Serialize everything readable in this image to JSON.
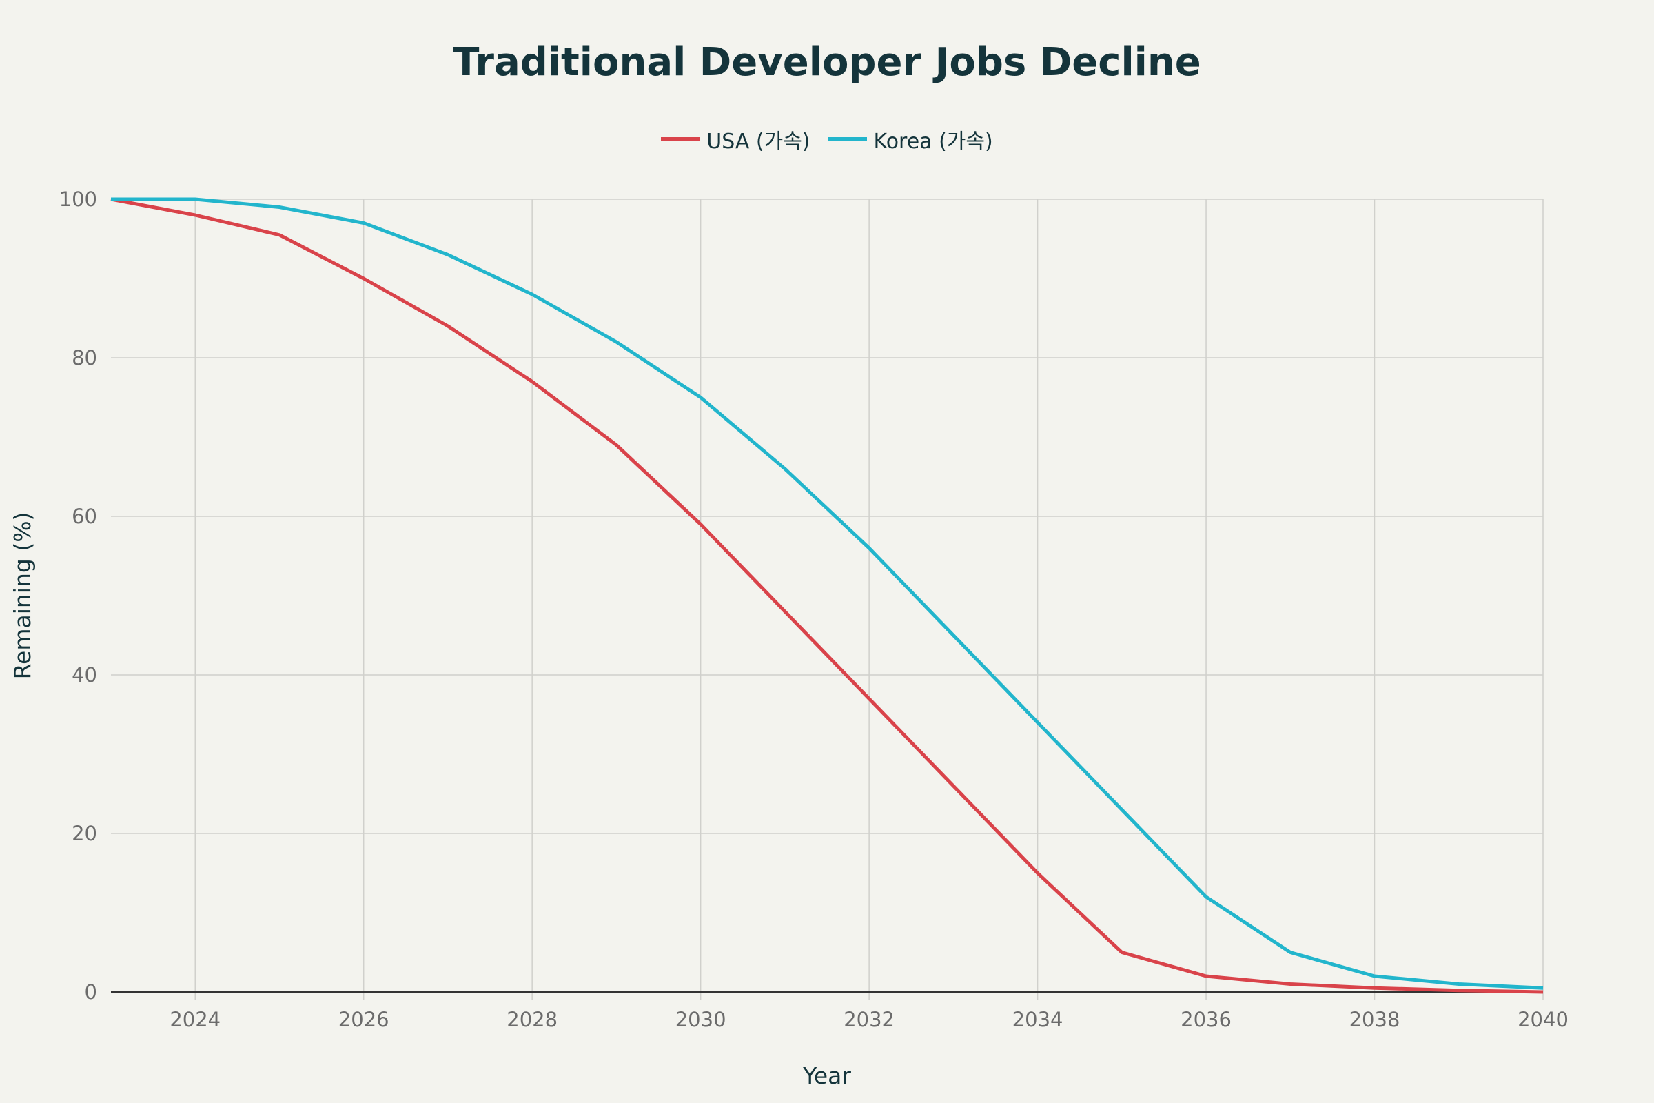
{
  "chart_data": {
    "type": "line",
    "title": "Traditional Developer Jobs Decline",
    "xlabel": "Year",
    "ylabel": "Remaining (%)",
    "xlim": [
      2023,
      2040
    ],
    "ylim": [
      0,
      100
    ],
    "x_ticks": [
      2024,
      2026,
      2028,
      2030,
      2032,
      2034,
      2036,
      2038,
      2040
    ],
    "y_ticks": [
      0,
      20,
      40,
      60,
      80,
      100
    ],
    "grid": true,
    "legend_position": "top-center",
    "x": [
      2023,
      2024,
      2025,
      2026,
      2027,
      2028,
      2029,
      2030,
      2031,
      2032,
      2033,
      2034,
      2035,
      2036,
      2037,
      2038,
      2039,
      2040
    ],
    "series": [
      {
        "name": "USA (가속)",
        "color": "#d9434a",
        "values": [
          100,
          98,
          95.5,
          90,
          84,
          77,
          69,
          59,
          48,
          37,
          26,
          15,
          5,
          2,
          1,
          0.5,
          0.2,
          0
        ]
      },
      {
        "name": "Korea (가속)",
        "color": "#22b5cc",
        "values": [
          100,
          100,
          99,
          97,
          93,
          88,
          82,
          75,
          66,
          56,
          45,
          34,
          23,
          12,
          5,
          2,
          1,
          0.5
        ]
      }
    ]
  }
}
